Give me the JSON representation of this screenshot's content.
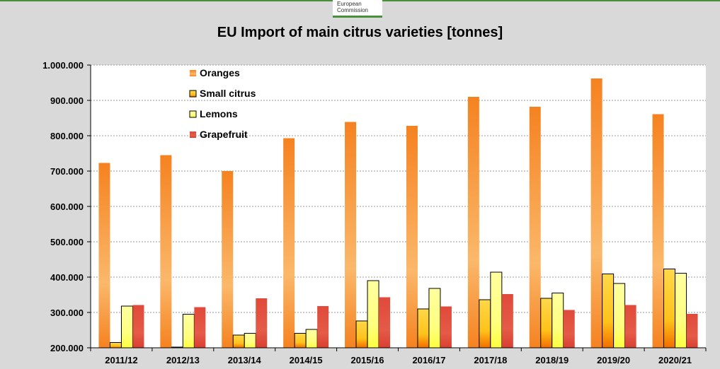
{
  "logo": {
    "line1": "European",
    "line2": "Commission"
  },
  "colors": {
    "oranges": "#f58220",
    "small_citrus": "#f7a800",
    "lemons": "#ffff66",
    "grapefruit": "#e04a3a",
    "background": "#d9d9d9",
    "plot_background": "#ffffff"
  },
  "chart_data": {
    "type": "bar",
    "title": "EU Import of main citrus varieties  [tonnes]",
    "xlabel": "",
    "ylabel": "",
    "ylim": [
      200000,
      1000000
    ],
    "yticks": [
      200000,
      300000,
      400000,
      500000,
      600000,
      700000,
      800000,
      900000,
      1000000
    ],
    "ytick_labels": [
      "200.000",
      "300.000",
      "400.000",
      "500.000",
      "600.000",
      "700.000",
      "800.000",
      "900.000",
      "1.000.000"
    ],
    "grid": true,
    "legend_position": "top-left",
    "categories": [
      "2011/12",
      "2012/13",
      "2013/14",
      "2014/15",
      "2015/16",
      "2016/17",
      "2017/18",
      "2018/19",
      "2019/20",
      "2020/21"
    ],
    "series": [
      {
        "name": "Oranges",
        "color": "#f58220",
        "values": [
          723000,
          745000,
          700000,
          793000,
          839000,
          828000,
          910000,
          882000,
          962000,
          861000
        ]
      },
      {
        "name": "Small citrus",
        "color": "#f7a800",
        "values": [
          215000,
          202000,
          236000,
          241000,
          276000,
          310000,
          336000,
          340000,
          409000,
          423000
        ]
      },
      {
        "name": "Lemons",
        "color": "#ffff66",
        "values": [
          318000,
          295000,
          241000,
          252000,
          390000,
          368000,
          414000,
          355000,
          382000,
          411000
        ]
      },
      {
        "name": "Grapefruit",
        "color": "#e04a3a",
        "values": [
          321000,
          315000,
          340000,
          318000,
          343000,
          317000,
          352000,
          307000,
          321000,
          296000
        ]
      }
    ]
  }
}
